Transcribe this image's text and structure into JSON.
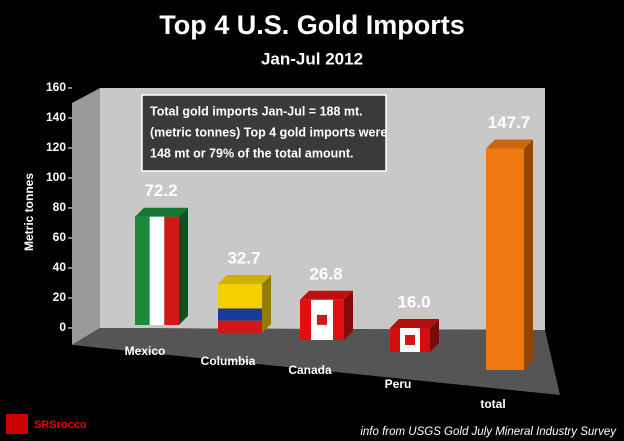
{
  "chart_data": {
    "type": "bar",
    "title": "Top 4 U.S. Gold Imports",
    "subtitle": "Jan-Jul 2012",
    "y_label": "Metric tonnes",
    "annotation": [
      "Total gold imports Jan-Jul = 188 mt.",
      "(metric tonnes) Top 4 gold imports were",
      "148 mt or 79% of the total amount."
    ],
    "source": "info from USGS Gold July Mineral Industry Survey",
    "logo": "SRSrocco",
    "categories": [
      "Mexico",
      "Columbia",
      "Canada",
      "Peru",
      "total"
    ],
    "values": [
      72.2,
      32.7,
      26.8,
      16.0,
      147.7
    ],
    "value_labels": [
      "72.2",
      "32.7",
      "26.8",
      "16.0",
      "147.7"
    ],
    "colors": [
      "#1a8a3a",
      "#f5d000",
      "#e01010",
      "#d01010",
      "#f07810"
    ],
    "ylim": [
      0,
      160
    ],
    "yticks": [
      0,
      20,
      40,
      60,
      80,
      100,
      120,
      140,
      160
    ],
    "grid": false
  }
}
